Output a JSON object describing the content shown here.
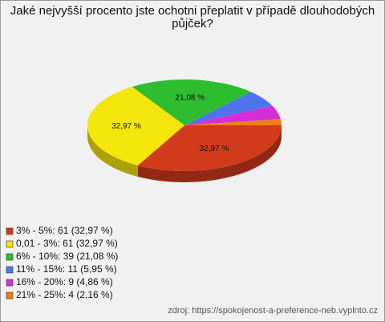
{
  "chart_data": {
    "type": "pie3d",
    "title": "Jaké nejvyšší procento jste ochotni přeplatit v případě dlouhodobých půjček?",
    "categories": [
      "3% - 5%: 61 (32,97 %)",
      "0,01 - 3%: 61 (32,97 %)",
      "6% - 10%: 39 (21,08 %)",
      "11% - 15%: 11 (5,95 %)",
      "16% - 20%: 9 (4,86 %)",
      "21% - 25%: 4 (2,16 %)"
    ],
    "values": [
      32.97,
      32.97,
      21.08,
      5.95,
      4.86,
      2.16
    ],
    "value_labels": [
      "32,97 %",
      "32,97 %",
      "21,08 %",
      null,
      null,
      null
    ],
    "colors": [
      "#d23a1c",
      "#f4e60a",
      "#2ebd2e",
      "#4f74ee",
      "#d42fd6",
      "#ee7f14"
    ],
    "source": "zdroj: https://spokojenost-a-preference-neb.vyplnto.cz"
  }
}
